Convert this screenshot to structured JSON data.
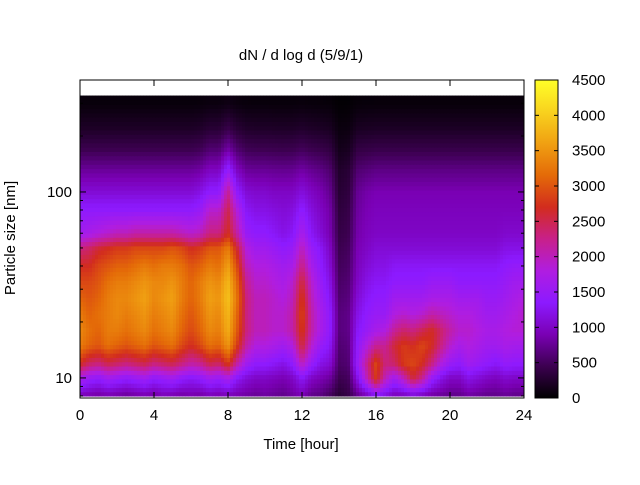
{
  "chart_data": {
    "type": "heatmap",
    "title": "dN / d log d (5/9/1)",
    "xlabel": "Time [hour]",
    "ylabel": "Particle size [nm]",
    "x_range": [
      0,
      24
    ],
    "x_ticks": [
      0,
      4,
      8,
      12,
      16,
      20,
      24
    ],
    "y_scale": "log",
    "y_range": [
      7.8,
      400
    ],
    "y_ticks": [
      10,
      100
    ],
    "colorbar": {
      "range": [
        0,
        4500
      ],
      "ticks": [
        0,
        500,
        1000,
        1500,
        2000,
        2500,
        3000,
        3500,
        4000,
        4500
      ],
      "colormap": [
        "#000000",
        "#3c0050",
        "#7a00b4",
        "#8c1aff",
        "#b01de0",
        "#c8208a",
        "#d22c1e",
        "#e46a08",
        "#f0a012",
        "#f8d21e",
        "#ffff28"
      ]
    },
    "grid": false,
    "data_top_size_nm": 330,
    "size_bins_nm": [
      8,
      10,
      12,
      15,
      18,
      22,
      27,
      33,
      40,
      50,
      60,
      80,
      100,
      130,
      170,
      220,
      300
    ],
    "times_h": [
      0,
      0.5,
      1,
      1.5,
      2,
      2.5,
      3,
      3.5,
      4,
      4.5,
      5,
      5.5,
      6,
      6.5,
      7,
      7.5,
      8,
      8.5,
      9,
      9.5,
      10,
      10.5,
      11,
      11.5,
      12,
      12.5,
      13,
      13.5,
      14,
      14.5,
      15,
      15.5,
      16,
      16.5,
      17,
      17.5,
      18,
      18.5,
      19,
      19.5,
      20,
      20.5,
      21,
      21.5,
      22,
      22.5,
      23,
      23.5,
      24
    ],
    "values_by_size": [
      [
        900,
        850,
        800,
        850,
        800,
        750,
        800,
        850,
        800,
        900,
        850,
        800,
        850,
        800,
        900,
        850,
        900,
        850,
        800,
        750,
        800,
        750,
        700,
        800,
        900,
        700,
        650,
        500,
        300,
        400,
        700,
        900,
        1200,
        1100,
        900,
        900,
        1000,
        900,
        800,
        750,
        700,
        700,
        800,
        750,
        700,
        700,
        750,
        700,
        700
      ],
      [
        1700,
        1500,
        1400,
        1600,
        1500,
        1400,
        1500,
        1600,
        1400,
        1500,
        1600,
        1400,
        1300,
        1400,
        1600,
        1500,
        1700,
        1300,
        1100,
        1000,
        1000,
        950,
        900,
        1000,
        1300,
        1000,
        900,
        800,
        450,
        500,
        1200,
        2000,
        2800,
        2000,
        1600,
        2000,
        2600,
        2200,
        1500,
        1200,
        1000,
        1000,
        1200,
        1100,
        1000,
        950,
        1050,
        1000,
        1000
      ],
      [
        2700,
        2400,
        2300,
        2500,
        2400,
        2300,
        2400,
        2500,
        2300,
        2400,
        2500,
        2300,
        2100,
        2200,
        2500,
        2400,
        2800,
        2100,
        1600,
        1400,
        1400,
        1300,
        1200,
        1400,
        2000,
        1500,
        1200,
        1100,
        550,
        600,
        1500,
        2200,
        2900,
        2300,
        2400,
        2800,
        2900,
        2700,
        2300,
        1800,
        1500,
        1400,
        1600,
        1500,
        1400,
        1300,
        1450,
        1400,
        1400
      ],
      [
        3300,
        3100,
        3000,
        3200,
        3100,
        3000,
        3100,
        3200,
        3000,
        3100,
        3200,
        2900,
        2700,
        2900,
        3200,
        3100,
        3500,
        2800,
        2100,
        1800,
        1800,
        1700,
        1600,
        1800,
        2600,
        1900,
        1500,
        1300,
        600,
        650,
        1400,
        1800,
        2200,
        2200,
        2600,
        2800,
        2700,
        2900,
        2700,
        2300,
        1900,
        1700,
        1800,
        1700,
        1600,
        1600,
        1700,
        1650,
        1650
      ],
      [
        3400,
        3200,
        3100,
        3300,
        3300,
        3200,
        3300,
        3400,
        3200,
        3300,
        3400,
        3100,
        2900,
        3100,
        3400,
        3300,
        3700,
        3000,
        2300,
        2000,
        2000,
        1900,
        1900,
        2100,
        2800,
        2100,
        1700,
        1400,
        650,
        700,
        1300,
        1500,
        1700,
        1800,
        2200,
        2400,
        2300,
        2500,
        2700,
        2400,
        2100,
        1900,
        1900,
        1800,
        1700,
        1700,
        1800,
        1850,
        1850
      ],
      [
        3300,
        3100,
        3200,
        3300,
        3400,
        3300,
        3400,
        3500,
        3300,
        3400,
        3500,
        3200,
        3000,
        3200,
        3500,
        3400,
        3800,
        3100,
        2300,
        2000,
        2000,
        1900,
        1900,
        2100,
        2900,
        2100,
        1700,
        1400,
        650,
        700,
        1200,
        1400,
        1500,
        1500,
        1800,
        1900,
        1800,
        1900,
        2100,
        2000,
        1900,
        1800,
        1800,
        1700,
        1600,
        1600,
        1700,
        1800,
        1900
      ],
      [
        3100,
        3000,
        3100,
        3300,
        3400,
        3400,
        3500,
        3600,
        3400,
        3500,
        3600,
        3300,
        3100,
        3300,
        3600,
        3500,
        3900,
        3200,
        2300,
        2000,
        2000,
        1900,
        1800,
        2000,
        2800,
        2000,
        1600,
        1300,
        600,
        650,
        1100,
        1300,
        1400,
        1400,
        1600,
        1600,
        1600,
        1600,
        1700,
        1700,
        1700,
        1600,
        1600,
        1600,
        1500,
        1500,
        1600,
        1700,
        1800
      ],
      [
        2900,
        2900,
        3000,
        3200,
        3300,
        3300,
        3400,
        3500,
        3400,
        3400,
        3500,
        3300,
        3100,
        3300,
        3500,
        3400,
        3800,
        3100,
        2200,
        1900,
        1900,
        1800,
        1700,
        1900,
        2600,
        1900,
        1500,
        1200,
        550,
        600,
        1000,
        1200,
        1300,
        1300,
        1400,
        1400,
        1400,
        1400,
        1500,
        1500,
        1500,
        1400,
        1400,
        1400,
        1400,
        1400,
        1500,
        1600,
        1600
      ],
      [
        2700,
        2700,
        2900,
        3000,
        3100,
        3100,
        3200,
        3300,
        3200,
        3300,
        3300,
        3200,
        3000,
        3100,
        3300,
        3200,
        3600,
        2900,
        2000,
        1800,
        1800,
        1700,
        1600,
        1700,
        2300,
        1700,
        1400,
        1100,
        500,
        550,
        950,
        1100,
        1200,
        1200,
        1300,
        1300,
        1300,
        1300,
        1300,
        1300,
        1300,
        1300,
        1300,
        1300,
        1300,
        1300,
        1400,
        1450,
        1450
      ],
      [
        2300,
        2400,
        2600,
        2700,
        2800,
        2800,
        2900,
        2900,
        2900,
        2900,
        3000,
        2900,
        2700,
        2800,
        3000,
        3000,
        3300,
        2600,
        1800,
        1600,
        1600,
        1500,
        1400,
        1500,
        2000,
        1500,
        1300,
        1000,
        450,
        500,
        900,
        1000,
        1100,
        1100,
        1100,
        1100,
        1100,
        1100,
        1100,
        1100,
        1100,
        1100,
        1100,
        1100,
        1100,
        1100,
        1200,
        1200,
        1200
      ],
      [
        1600,
        1700,
        1800,
        1900,
        2000,
        2000,
        2100,
        2100,
        2100,
        2100,
        2100,
        2000,
        1900,
        2000,
        2300,
        2300,
        2700,
        2100,
        1500,
        1400,
        1400,
        1300,
        1200,
        1300,
        1700,
        1300,
        1100,
        900,
        400,
        450,
        850,
        950,
        1000,
        1000,
        1000,
        1000,
        1000,
        1000,
        1000,
        1000,
        1000,
        1000,
        1000,
        1000,
        1000,
        1000,
        1050,
        1050,
        1050
      ],
      [
        1400,
        1400,
        1400,
        1400,
        1400,
        1400,
        1400,
        1400,
        1400,
        1400,
        1400,
        1400,
        1400,
        1500,
        1900,
        1900,
        2500,
        1800,
        1300,
        1200,
        1200,
        1150,
        1100,
        1150,
        1400,
        1150,
        1000,
        850,
        350,
        400,
        800,
        900,
        950,
        950,
        950,
        950,
        950,
        950,
        950,
        950,
        950,
        950,
        950,
        950,
        950,
        950,
        950,
        950,
        950
      ],
      [
        1100,
        1100,
        1100,
        1100,
        1100,
        1100,
        1100,
        1100,
        1100,
        1100,
        1100,
        1100,
        1100,
        1200,
        1400,
        1400,
        2200,
        1400,
        1100,
        1050,
        1050,
        1000,
        1000,
        1000,
        1150,
        1000,
        900,
        750,
        300,
        350,
        750,
        850,
        900,
        900,
        900,
        900,
        900,
        900,
        900,
        900,
        900,
        900,
        900,
        900,
        900,
        900,
        900,
        900,
        900
      ],
      [
        800,
        800,
        800,
        800,
        800,
        800,
        800,
        800,
        800,
        800,
        800,
        800,
        800,
        850,
        1000,
        1000,
        1500,
        1000,
        800,
        780,
        780,
        760,
        750,
        760,
        850,
        760,
        700,
        600,
        250,
        300,
        600,
        650,
        700,
        700,
        700,
        700,
        700,
        700,
        700,
        700,
        700,
        700,
        700,
        700,
        700,
        700,
        700,
        700,
        700
      ],
      [
        450,
        450,
        450,
        450,
        450,
        450,
        450,
        450,
        450,
        450,
        450,
        450,
        450,
        480,
        600,
        600,
        850,
        600,
        480,
        460,
        460,
        450,
        440,
        450,
        500,
        450,
        420,
        380,
        150,
        180,
        380,
        400,
        420,
        420,
        420,
        420,
        420,
        420,
        420,
        420,
        420,
        420,
        420,
        420,
        420,
        420,
        420,
        420,
        420
      ],
      [
        220,
        220,
        220,
        220,
        220,
        220,
        220,
        220,
        220,
        220,
        220,
        220,
        220,
        240,
        300,
        300,
        420,
        300,
        240,
        230,
        230,
        225,
        220,
        225,
        250,
        225,
        210,
        190,
        80,
        90,
        190,
        200,
        210,
        210,
        210,
        210,
        210,
        210,
        210,
        210,
        210,
        210,
        210,
        210,
        210,
        210,
        210,
        210,
        210
      ],
      [
        60,
        60,
        60,
        60,
        60,
        60,
        60,
        60,
        60,
        60,
        60,
        60,
        60,
        65,
        80,
        80,
        110,
        80,
        65,
        62,
        62,
        61,
        60,
        61,
        68,
        61,
        57,
        52,
        20,
        25,
        52,
        55,
        57,
        57,
        57,
        57,
        57,
        57,
        57,
        57,
        57,
        57,
        57,
        57,
        57,
        57,
        57,
        57,
        57
      ]
    ]
  }
}
